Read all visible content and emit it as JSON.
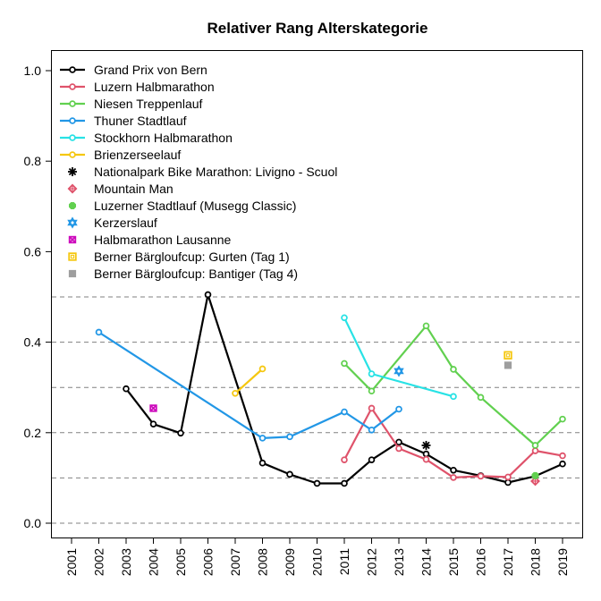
{
  "chart_data": {
    "type": "line",
    "title": "Relativer Rang Alterskategorie",
    "xlabel": "",
    "ylabel": "",
    "ylim": [
      0,
      1
    ],
    "x_categories": [
      "2001",
      "2002",
      "2003",
      "2004",
      "2005",
      "2006",
      "2007",
      "2008",
      "2009",
      "2010",
      "2011",
      "2012",
      "2013",
      "2014",
      "2015",
      "2016",
      "2017",
      "2018",
      "2019"
    ],
    "y_ticks": [
      "0.0",
      "0.2",
      "0.4",
      "0.6",
      "0.8",
      "1.0"
    ],
    "gridlines_y": [
      0.0,
      0.1,
      0.2,
      0.3,
      0.4,
      0.5
    ],
    "grid": "horizontal dashed",
    "legend_position": "top-left",
    "series": [
      {
        "name": "Grand Prix von Bern",
        "color": "#000000",
        "marker": "circle",
        "line": true,
        "points": [
          [
            2003,
            0.297
          ],
          [
            2004,
            0.219
          ],
          [
            2005,
            0.199
          ],
          [
            2006,
            0.505
          ],
          [
            2008,
            0.133
          ],
          [
            2009,
            0.108
          ],
          [
            2010,
            0.088
          ],
          [
            2011,
            0.088
          ],
          [
            2012,
            0.14
          ],
          [
            2013,
            0.179
          ],
          [
            2014,
            0.153
          ],
          [
            2015,
            0.117
          ],
          [
            2016,
            0.105
          ],
          [
            2017,
            0.09
          ],
          [
            2018,
            0.104
          ],
          [
            2019,
            0.131
          ]
        ]
      },
      {
        "name": "Luzern Halbmarathon",
        "color": "#DF536B",
        "marker": "circle",
        "line": true,
        "points": [
          [
            2011,
            0.14
          ],
          [
            2012,
            0.254
          ],
          [
            2013,
            0.165
          ],
          [
            2014,
            0.141
          ],
          [
            2015,
            0.101
          ],
          [
            2016,
            0.104
          ],
          [
            2017,
            0.102
          ],
          [
            2018,
            0.16
          ],
          [
            2019,
            0.149
          ]
        ]
      },
      {
        "name": "Niesen Treppenlauf",
        "color": "#61D04F",
        "marker": "circle",
        "line": true,
        "points": [
          [
            2011,
            0.353
          ],
          [
            2012,
            0.292
          ],
          [
            2014,
            0.436
          ],
          [
            2015,
            0.34
          ],
          [
            2016,
            0.278
          ],
          [
            2018,
            0.172
          ],
          [
            2019,
            0.23
          ]
        ]
      },
      {
        "name": "Thuner Stadtlauf",
        "color": "#2297E6",
        "marker": "circle",
        "line": true,
        "points": [
          [
            2002,
            0.422
          ],
          [
            2008,
            0.188
          ],
          [
            2009,
            0.191
          ],
          [
            2011,
            0.246
          ],
          [
            2012,
            0.206
          ],
          [
            2013,
            0.252
          ]
        ]
      },
      {
        "name": "Stockhorn Halbmarathon",
        "color": "#28E2E5",
        "marker": "circle",
        "line": true,
        "points": [
          [
            2011,
            0.454
          ],
          [
            2012,
            0.33
          ],
          [
            2015,
            0.28
          ]
        ]
      },
      {
        "name": "Brienzerseelauf",
        "color": "#F5C710",
        "marker": "circle",
        "line": true,
        "points": [
          [
            2007,
            0.287
          ],
          [
            2008,
            0.341
          ]
        ]
      },
      {
        "name": "Nationalpark Bike Marathon: Livigno - Scuol",
        "color": "#000000",
        "marker": "asterisk",
        "line": false,
        "points": [
          [
            2014,
            0.172
          ]
        ]
      },
      {
        "name": "Mountain Man",
        "color": "#DF536B",
        "marker": "diamond",
        "line": false,
        "points": [
          [
            2018,
            0.093
          ]
        ]
      },
      {
        "name": "Luzerner Stadtlauf (Musegg Classic)",
        "color": "#61D04F",
        "marker": "octagon",
        "line": false,
        "points": [
          [
            2018,
            0.105
          ]
        ]
      },
      {
        "name": "Kerzerslauf",
        "color": "#2297E6",
        "marker": "star",
        "line": false,
        "points": [
          [
            2013,
            0.336
          ]
        ]
      },
      {
        "name": "Halbmarathon Lausanne",
        "color": "#CD0BBC",
        "marker": "boxx",
        "line": false,
        "points": [
          [
            2004,
            0.254
          ]
        ]
      },
      {
        "name": "Berner Bärgloufcup: Gurten (Tag 1)",
        "color": "#F5C710",
        "marker": "squarebox",
        "line": false,
        "points": [
          [
            2017,
            0.371
          ]
        ]
      },
      {
        "name": "Berner Bärgloufcup: Bantiger (Tag 4)",
        "color": "#9E9E9E",
        "marker": "square",
        "line": false,
        "points": [
          [
            2017,
            0.349
          ]
        ]
      }
    ]
  }
}
